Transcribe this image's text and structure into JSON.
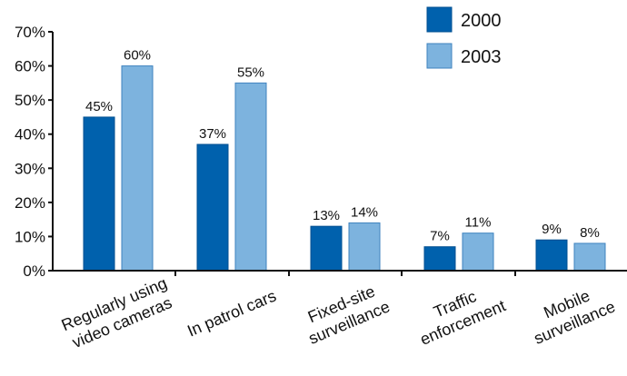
{
  "chart_data": {
    "type": "bar",
    "title": "",
    "xlabel": "",
    "ylabel": "",
    "ylim": [
      0,
      70
    ],
    "y_ticks": [
      "0%",
      "10%",
      "20%",
      "30%",
      "40%",
      "50%",
      "60%",
      "70%"
    ],
    "y_tick_values": [
      0,
      10,
      20,
      30,
      40,
      50,
      60,
      70
    ],
    "categories": [
      [
        "Regularly using",
        "video cameras"
      ],
      [
        "In patrol cars"
      ],
      [
        "Fixed-site",
        "surveillance"
      ],
      [
        "Traffic",
        "enforcement"
      ],
      [
        "Mobile",
        "surveillance"
      ]
    ],
    "series": [
      {
        "name": "2000",
        "color": "#0061ad",
        "values": [
          45,
          37,
          13,
          7,
          9
        ],
        "labels": [
          "45%",
          "37%",
          "13%",
          "7%",
          "9%"
        ]
      },
      {
        "name": "2003",
        "color": "#7db3de",
        "values": [
          60,
          55,
          14,
          11,
          8
        ],
        "labels": [
          "60%",
          "55%",
          "14%",
          "11%",
          "8%"
        ]
      }
    ],
    "grid": false,
    "legend_position": "top-right"
  }
}
